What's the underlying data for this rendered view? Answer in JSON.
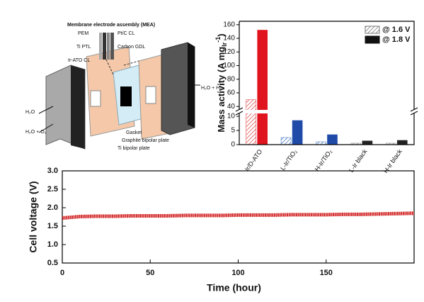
{
  "diagram": {
    "mea_title": "Membrane electrode assembly (MEA)",
    "pem": "PEM",
    "ptc_cl": "Pt/C CL",
    "ti_ptl": "Ti PTL",
    "carbon_gdl": "Carbon GDL",
    "irato_cl": "Ir-ATO CL",
    "outlet_cathode": "H₂O + H₂",
    "inlet_anode": "H₂O",
    "outlet_anode": "H₂O + O₂",
    "gasket": "Gasket",
    "graphite_plate": "Graphite bipolar plate",
    "ti_plate": "Ti bipolar plate"
  },
  "chart_data": [
    {
      "type": "bar",
      "y_label": [
        "Mass activity (A mg",
        "Ir",
        "-1",
        ")"
      ],
      "categories": [
        "Ir/D-ATO",
        "L-Ir/TiO₂",
        "H-Ir/TiO₂",
        "L-Ir black",
        "H-Ir black"
      ],
      "series": [
        {
          "name": "@ 1.6 V",
          "hatch": true,
          "color": "#777777",
          "colors": [
            "#e05050",
            "#4a7cc4",
            "#4a7cc4",
            "#888888",
            "#888888"
          ],
          "values": [
            50,
            2.5,
            1,
            0.5,
            0.5
          ]
        },
        {
          "name": "@ 1.8 V",
          "hatch": false,
          "color": "#111111",
          "colors": [
            "#e0141e",
            "#1f4aa8",
            "#1f4aa8",
            "#222222",
            "#222222"
          ],
          "values": [
            152,
            8.5,
            3.5,
            1.3,
            1.5
          ]
        }
      ],
      "ylim": [
        0,
        165
      ],
      "ybreak": [
        11,
        35
      ],
      "yticks": [
        0,
        5,
        10,
        40,
        60,
        80,
        100,
        120,
        140,
        160
      ],
      "legend": "upper right"
    },
    {
      "type": "line",
      "x_label": "Time (hour)",
      "y_label": "Cell voltage (V)",
      "x": [
        0,
        10,
        20,
        30,
        40,
        50,
        60,
        70,
        80,
        90,
        100,
        110,
        120,
        130,
        140,
        150,
        160,
        170,
        180,
        190,
        200
      ],
      "series": [
        {
          "color": "#d42a2a",
          "values": [
            1.72,
            1.76,
            1.77,
            1.77,
            1.78,
            1.78,
            1.78,
            1.79,
            1.79,
            1.79,
            1.8,
            1.8,
            1.8,
            1.81,
            1.81,
            1.81,
            1.82,
            1.82,
            1.83,
            1.84,
            1.85
          ]
        }
      ],
      "xlim": [
        0,
        200
      ],
      "xticks": [
        0,
        50,
        100,
        150
      ],
      "ylim": [
        0.5,
        3.0
      ],
      "yticks": [
        0.5,
        {
          "value": 1,
          "label": "1.0"
        },
        1.5,
        {
          "value": 2,
          "label": "2.0"
        },
        2.5,
        {
          "value": 3,
          "label": "3.0"
        }
      ]
    }
  ]
}
